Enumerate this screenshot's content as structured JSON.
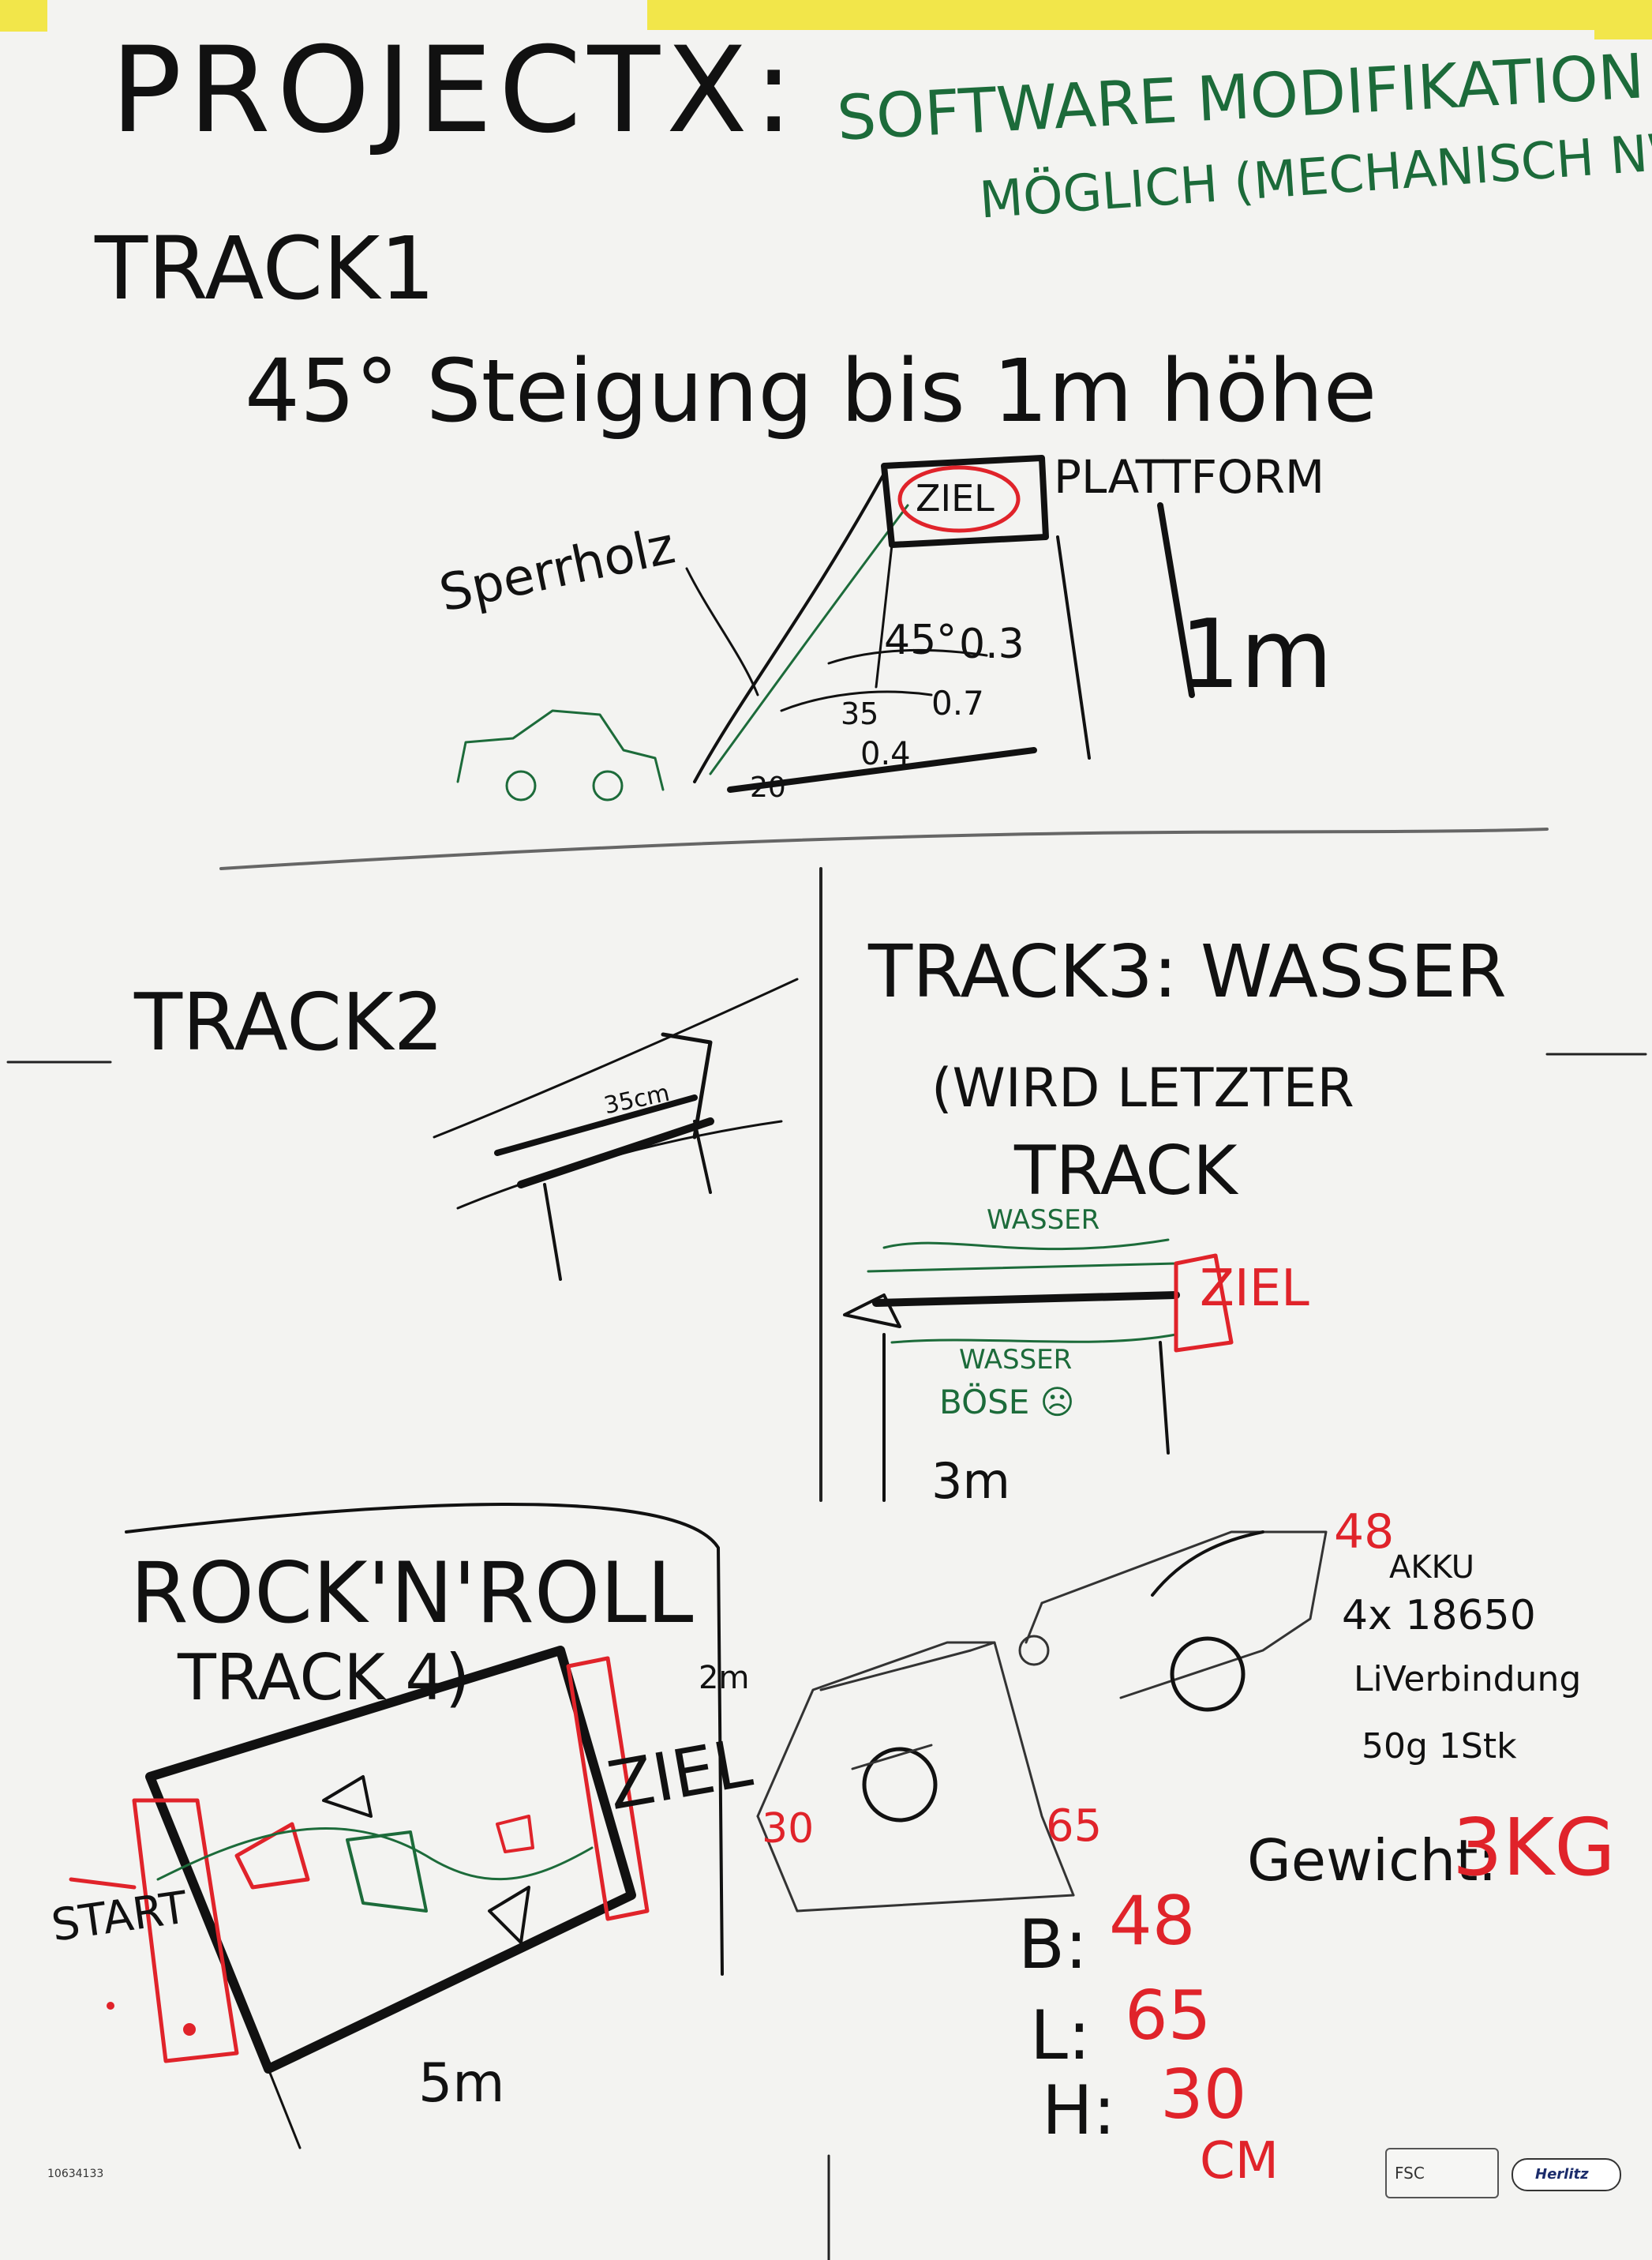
{
  "header": {
    "title": "PROJECTX:",
    "note_line1": "SOFTWARE MODIFIKATION",
    "note_line2": "MÖGLICH (MECHANISCH NW)"
  },
  "track1": {
    "title": "TRACK1",
    "subtitle": "45° Steigung bis 1m höhe",
    "label_sperrholz": "Sperrholz",
    "label_ziel": "ZIEL",
    "label_plattform": "PLATTFORM",
    "label_height": "1m",
    "angle_45": "45°",
    "angle_35": "35",
    "angle_20": "20",
    "len_1": "0.3",
    "len_2": "0.7",
    "len_3": "0.4"
  },
  "track2": {
    "title": "TRACK2",
    "bridge_label": "35cm"
  },
  "track3": {
    "title": "TRACK3: WASSER",
    "note_line1": "(WIRD LETZTER",
    "note_line2": "TRACK",
    "water_top": "WASSER",
    "water_bottom": "WASSER",
    "danger": "BÖSE ☹",
    "goal": "ZIEL",
    "width": "3m"
  },
  "track4": {
    "title": "ROCK'N'ROLL",
    "subtitle": "TRACK 4)",
    "start": "START",
    "goal": "ZIEL",
    "width": "5m",
    "depth": "2m"
  },
  "robot": {
    "height_label": "30",
    "length_label": "65",
    "width_label": "48",
    "akku_line1": "AKKU",
    "akku_line2": "4x 18650",
    "akku_line3": "LiVerbindung",
    "akku_line4": "50g 1Stk",
    "gewicht_label": "Gewicht:",
    "gewicht_value": "3KG",
    "dims": [
      {
        "label": "B:",
        "value": "48"
      },
      {
        "label": "L:",
        "value": "65"
      },
      {
        "label": "H:",
        "value": "30"
      }
    ],
    "unit": "CM"
  },
  "footer": {
    "code": "10634133",
    "fsc": "FSC",
    "brand": "Herlitz"
  },
  "colors": {
    "black_ink": "#111111",
    "green_ink": "#1c6b3a",
    "red_ink": "#e0232a",
    "paper": "#f3f3f1",
    "tape": "#f2e64a"
  }
}
